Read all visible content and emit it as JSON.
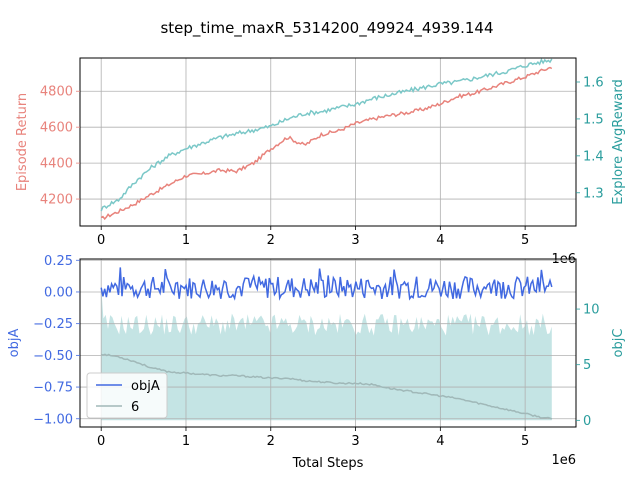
{
  "figure": {
    "title": "step_time_maxR_5314200_49924_4939.144"
  },
  "chart_data": [
    {
      "type": "line",
      "panel": "top",
      "xlim": [
        -250000,
        5600000
      ],
      "x_ticks": [
        0,
        1,
        2,
        3,
        4,
        5
      ],
      "x_offset_label": "1e6",
      "grid": true,
      "left_axis": {
        "label": "Episode Return",
        "color": "#e8837c",
        "ylim": [
          4050,
          4985
        ],
        "ticks": [
          4200,
          4400,
          4600,
          4800
        ]
      },
      "right_axis": {
        "label": "Explore AvgReward",
        "color": "#2a9d9d",
        "ylim": [
          1.21,
          1.665
        ],
        "ticks": [
          1.3,
          1.4,
          1.5,
          1.6
        ]
      },
      "series": [
        {
          "axis": "left",
          "color": "#e8837c",
          "x": [
            0,
            200000,
            400000,
            600000,
            800000,
            1000000,
            1200000,
            1400000,
            1600000,
            1800000,
            2000000,
            2200000,
            2300000,
            2400000,
            2600000,
            2800000,
            3000000,
            3200000,
            3400000,
            3600000,
            3800000,
            4000000,
            4200000,
            4400000,
            4600000,
            4800000,
            5000000,
            5200000,
            5314200
          ],
          "y": [
            4090,
            4130,
            4175,
            4230,
            4280,
            4330,
            4340,
            4360,
            4355,
            4400,
            4480,
            4545,
            4520,
            4500,
            4560,
            4580,
            4620,
            4645,
            4665,
            4680,
            4700,
            4730,
            4770,
            4790,
            4820,
            4850,
            4880,
            4915,
            4935
          ]
        },
        {
          "axis": "right",
          "color": "#7bc8c8",
          "x": [
            0,
            100000,
            200000,
            300000,
            400000,
            600000,
            800000,
            1000000,
            1200000,
            1400000,
            1600000,
            1800000,
            2000000,
            2200000,
            2400000,
            2600000,
            2800000,
            3000000,
            3200000,
            3400000,
            3600000,
            3800000,
            4000000,
            4200000,
            4400000,
            4600000,
            4800000,
            5000000,
            5200000,
            5314200
          ],
          "y": [
            1.255,
            1.27,
            1.28,
            1.305,
            1.33,
            1.37,
            1.4,
            1.42,
            1.435,
            1.45,
            1.46,
            1.47,
            1.48,
            1.5,
            1.515,
            1.52,
            1.53,
            1.54,
            1.555,
            1.565,
            1.575,
            1.585,
            1.595,
            1.6,
            1.61,
            1.62,
            1.63,
            1.645,
            1.655,
            1.66
          ]
        }
      ]
    },
    {
      "type": "line",
      "panel": "bottom",
      "xlim": [
        -250000,
        5600000
      ],
      "x_ticks": [
        0,
        1,
        2,
        3,
        4,
        5
      ],
      "x_offset_label": "1e6",
      "xlabel": "Total Steps",
      "grid": true,
      "legend": {
        "placement": "lower-left",
        "entries": [
          "objA",
          "6"
        ]
      },
      "left_axis": {
        "label": "objA",
        "color": "#4169e1",
        "ylim": [
          -1.065,
          0.26
        ],
        "ticks": [
          0.25,
          0.0,
          -0.25,
          -0.5,
          -0.75,
          -1.0
        ],
        "tick_labels": [
          "0.25",
          "0.00",
          "−0.25",
          "−0.50",
          "−0.75",
          "−1.00"
        ]
      },
      "right_axis": {
        "label": "objC",
        "color": "#2a9d9d",
        "ylim": [
          -0.6,
          14.5
        ],
        "ticks": [
          0,
          5,
          10
        ]
      },
      "series": [
        {
          "name": "objA",
          "axis": "left",
          "color": "#4169e1",
          "note": "noisy oscillation around 0 between about -0.12 and 0.2",
          "x_range": [
            0,
            5314200
          ],
          "amplitude": 0.09,
          "end_value": 0.04
        },
        {
          "name": "6",
          "axis": "left",
          "color": "#a0b8b8",
          "x": [
            0,
            200000,
            400000,
            600000,
            800000,
            1000000,
            1200000,
            1400000,
            1600000,
            1800000,
            2000000,
            2200000,
            2400000,
            2600000,
            2800000,
            3000000,
            3200000,
            3400000,
            3600000,
            3800000,
            4000000,
            4200000,
            4400000,
            4600000,
            4800000,
            5000000,
            5200000,
            5314200
          ],
          "y": [
            -0.49,
            -0.51,
            -0.55,
            -0.6,
            -0.63,
            -0.64,
            -0.65,
            -0.66,
            -0.66,
            -0.67,
            -0.68,
            -0.68,
            -0.7,
            -0.71,
            -0.72,
            -0.72,
            -0.73,
            -0.76,
            -0.78,
            -0.8,
            -0.82,
            -0.84,
            -0.87,
            -0.9,
            -0.93,
            -0.96,
            -0.99,
            -1.0
          ]
        },
        {
          "name": "objC",
          "type": "area",
          "axis": "right",
          "color": "#c4e4e4",
          "note": "filled band from 0 up to a jagged top edge oscillating between about 8 and 11",
          "x_range": [
            0,
            5314200
          ],
          "base_value": 8.6,
          "amplitude": 1.0,
          "start_value": 12.0
        }
      ]
    }
  ]
}
